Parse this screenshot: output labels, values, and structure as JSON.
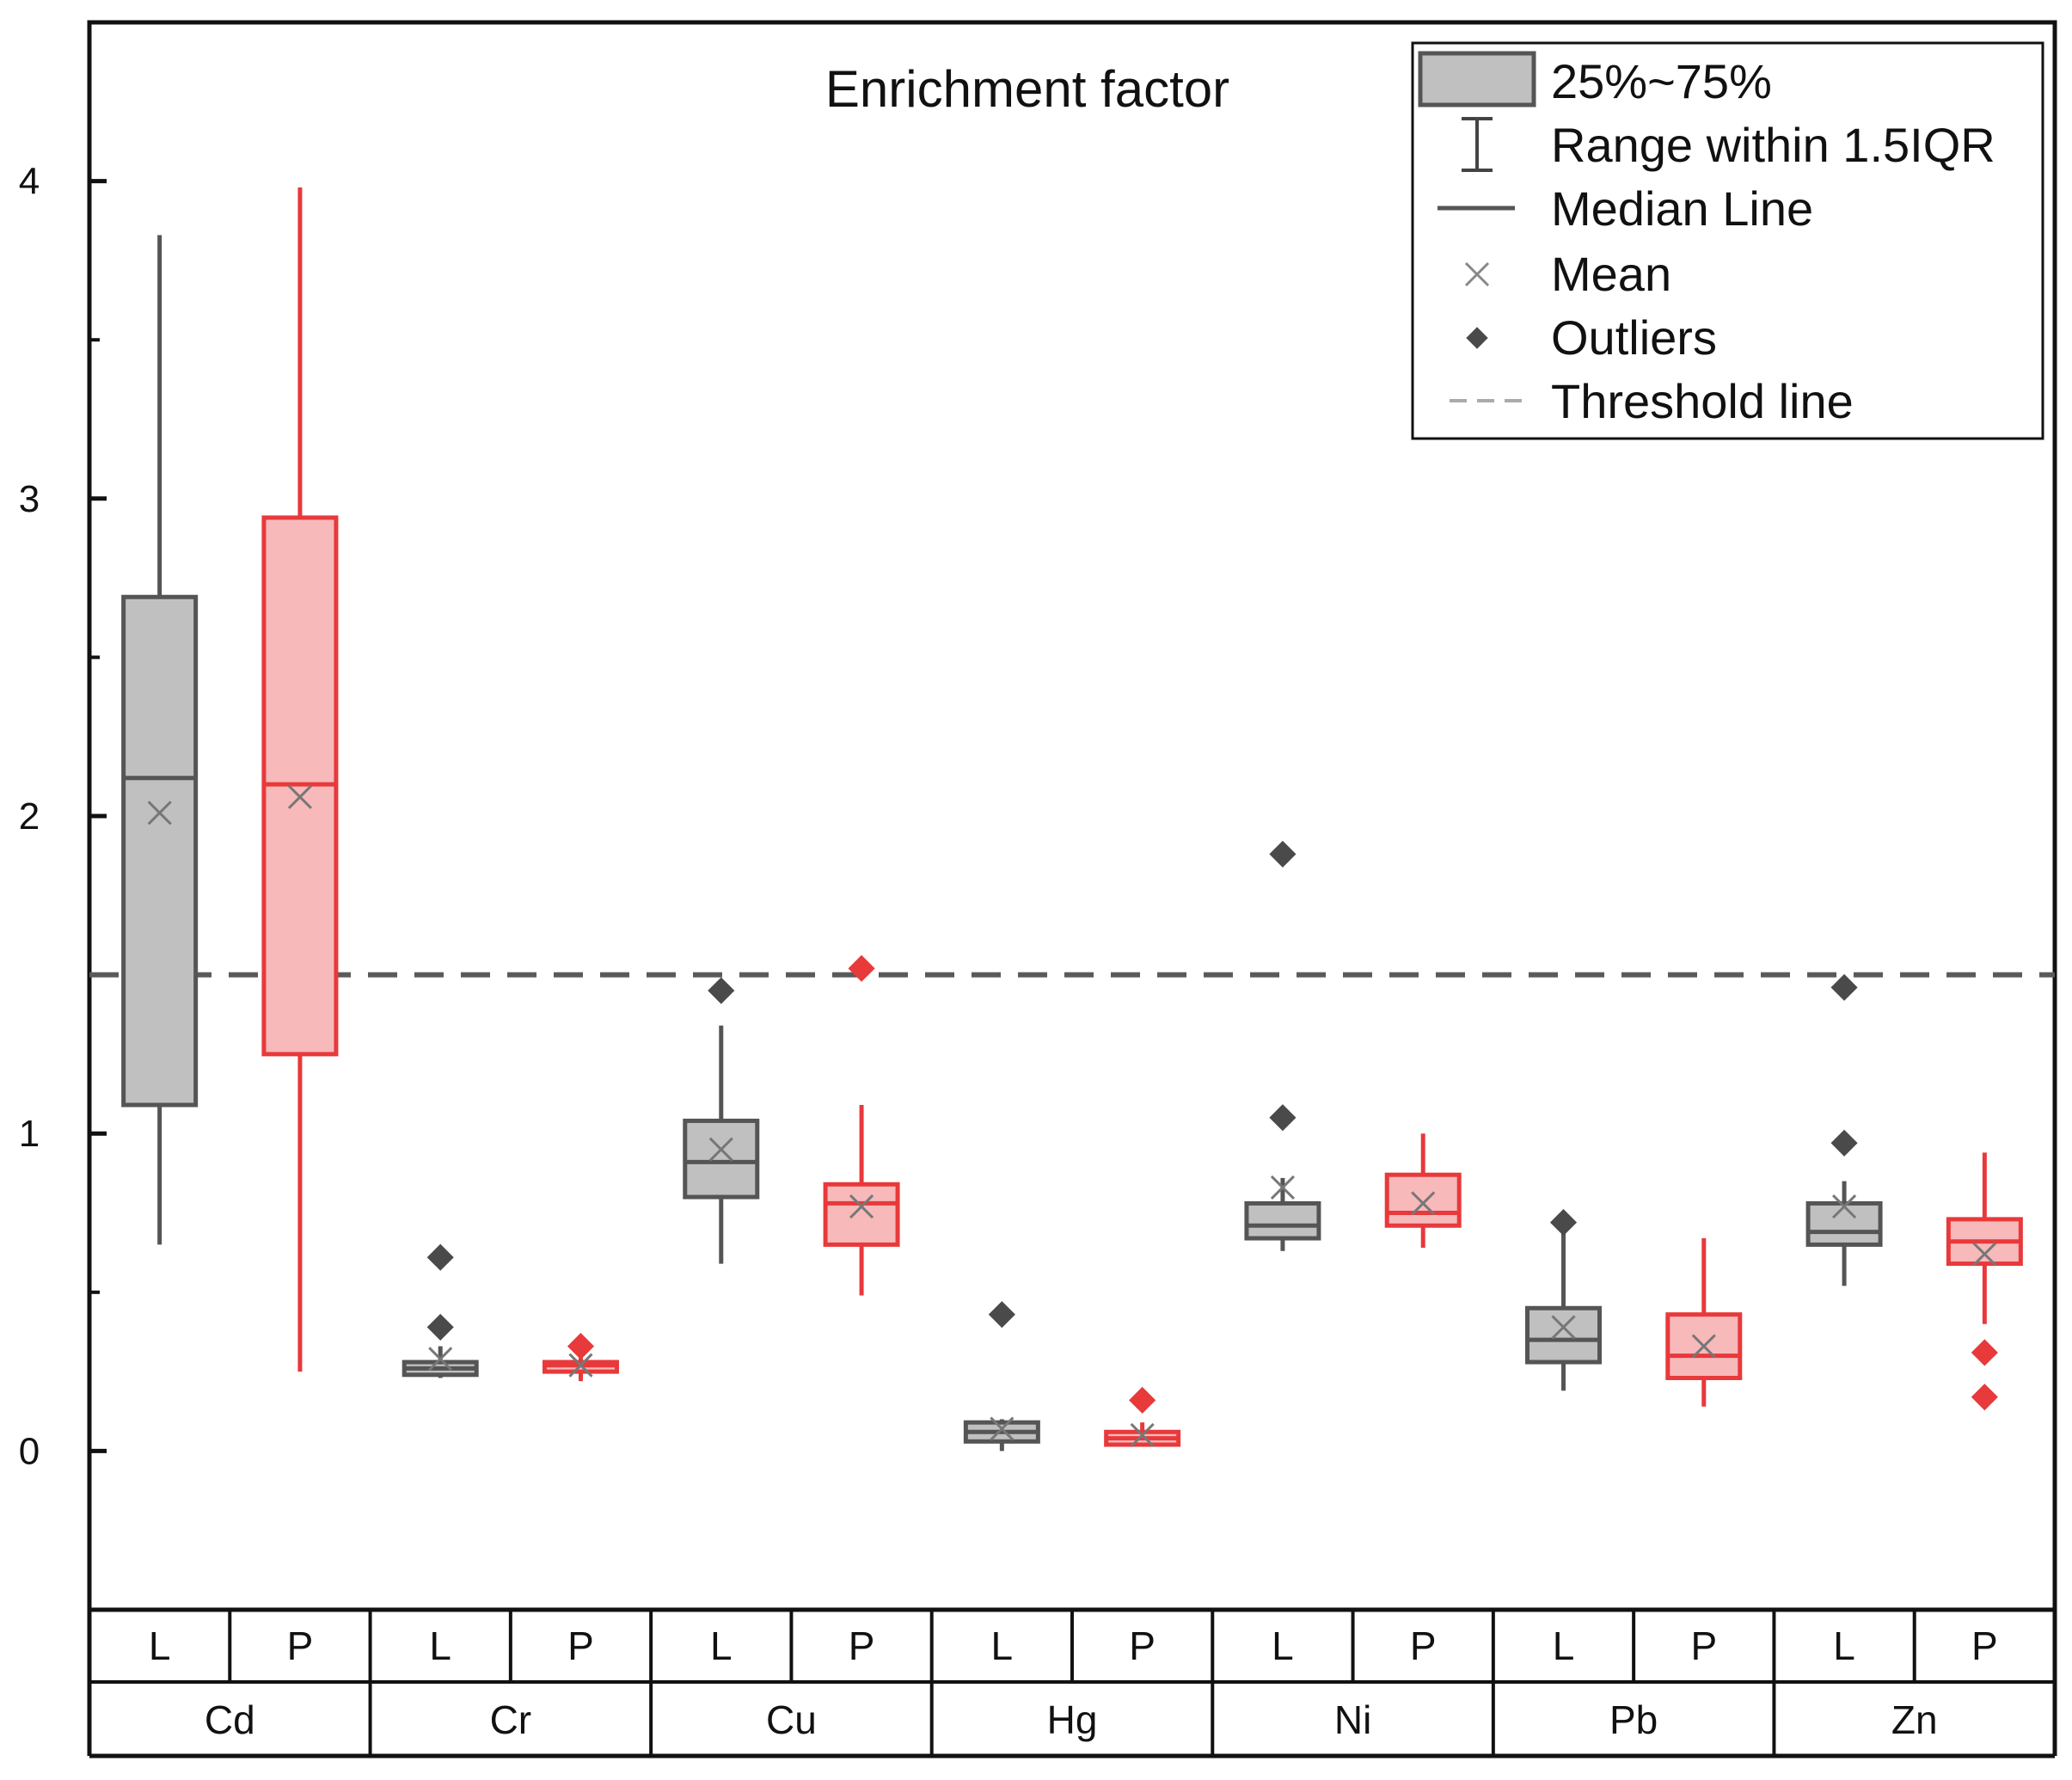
{
  "chart_data": {
    "type": "box",
    "title": "Enrichment factor",
    "xlabel": "",
    "ylabel": "",
    "ylim": [
      -0.5,
      4.5
    ],
    "yticks": [
      0,
      1,
      2,
      3,
      4
    ],
    "threshold": 1.5,
    "elements": [
      "Cd",
      "Cr",
      "Cu",
      "Hg",
      "Ni",
      "Pb",
      "Zn"
    ],
    "groups": [
      "L",
      "P"
    ],
    "colors": {
      "L_stroke": "#555555",
      "L_fill": "#c0c0c0",
      "P_stroke": "#e8393b",
      "P_fill": "#f7b9ba",
      "L_outlier": "#4a4a4a",
      "P_outlier": "#e8393b",
      "threshold": "#5a5a5a"
    },
    "series": [
      {
        "element": "Cd",
        "group": "L",
        "min": 0.65,
        "q1": 1.09,
        "median": 2.12,
        "q3": 2.69,
        "max": 3.83,
        "mean": 2.01,
        "outliers": []
      },
      {
        "element": "Cd",
        "group": "P",
        "min": 0.25,
        "q1": 1.25,
        "median": 2.1,
        "q3": 2.94,
        "max": 3.98,
        "mean": 2.06,
        "outliers": []
      },
      {
        "element": "Cr",
        "group": "L",
        "min": 0.23,
        "q1": 0.24,
        "median": 0.26,
        "q3": 0.28,
        "max": 0.33,
        "mean": 0.29,
        "outliers": [
          0.39,
          0.61
        ]
      },
      {
        "element": "Cr",
        "group": "P",
        "min": 0.22,
        "q1": 0.25,
        "median": 0.27,
        "q3": 0.28,
        "max": 0.3,
        "mean": 0.27,
        "outliers": [
          0.33
        ]
      },
      {
        "element": "Cu",
        "group": "L",
        "min": 0.59,
        "q1": 0.8,
        "median": 0.91,
        "q3": 1.04,
        "max": 1.34,
        "mean": 0.95,
        "outliers": [
          1.45
        ]
      },
      {
        "element": "Cu",
        "group": "P",
        "min": 0.49,
        "q1": 0.65,
        "median": 0.78,
        "q3": 0.84,
        "max": 1.09,
        "mean": 0.77,
        "outliers": [
          1.52
        ]
      },
      {
        "element": "Hg",
        "group": "L",
        "min": 0.0,
        "q1": 0.03,
        "median": 0.06,
        "q3": 0.09,
        "max": 0.1,
        "mean": 0.07,
        "outliers": [
          0.43
        ]
      },
      {
        "element": "Hg",
        "group": "P",
        "min": 0.02,
        "q1": 0.02,
        "median": 0.04,
        "q3": 0.06,
        "max": 0.09,
        "mean": 0.05,
        "outliers": [
          0.16
        ]
      },
      {
        "element": "Ni",
        "group": "L",
        "min": 0.63,
        "q1": 0.67,
        "median": 0.71,
        "q3": 0.78,
        "max": 0.86,
        "mean": 0.83,
        "outliers": [
          1.05,
          1.88
        ]
      },
      {
        "element": "Ni",
        "group": "P",
        "min": 0.64,
        "q1": 0.71,
        "median": 0.75,
        "q3": 0.87,
        "max": 1.0,
        "mean": 0.78,
        "outliers": []
      },
      {
        "element": "Pb",
        "group": "L",
        "min": 0.19,
        "q1": 0.28,
        "median": 0.35,
        "q3": 0.45,
        "max": 0.72,
        "mean": 0.39,
        "outliers": [
          0.72
        ]
      },
      {
        "element": "Pb",
        "group": "P",
        "min": 0.14,
        "q1": 0.23,
        "median": 0.3,
        "q3": 0.43,
        "max": 0.67,
        "mean": 0.33,
        "outliers": []
      },
      {
        "element": "Zn",
        "group": "L",
        "min": 0.52,
        "q1": 0.65,
        "median": 0.69,
        "q3": 0.78,
        "max": 0.85,
        "mean": 0.77,
        "outliers": [
          0.97,
          1.46
        ]
      },
      {
        "element": "Zn",
        "group": "P",
        "min": 0.4,
        "q1": 0.59,
        "median": 0.66,
        "q3": 0.73,
        "max": 0.94,
        "mean": 0.62,
        "outliers": [
          0.17,
          0.31
        ]
      }
    ],
    "legend": {
      "placement": "top-right",
      "box": "25%~75%",
      "range": "Range within 1.5IQR",
      "median": "Median Line",
      "mean": "Mean",
      "outliers": "Outliers",
      "threshold": "Threshold line"
    }
  }
}
